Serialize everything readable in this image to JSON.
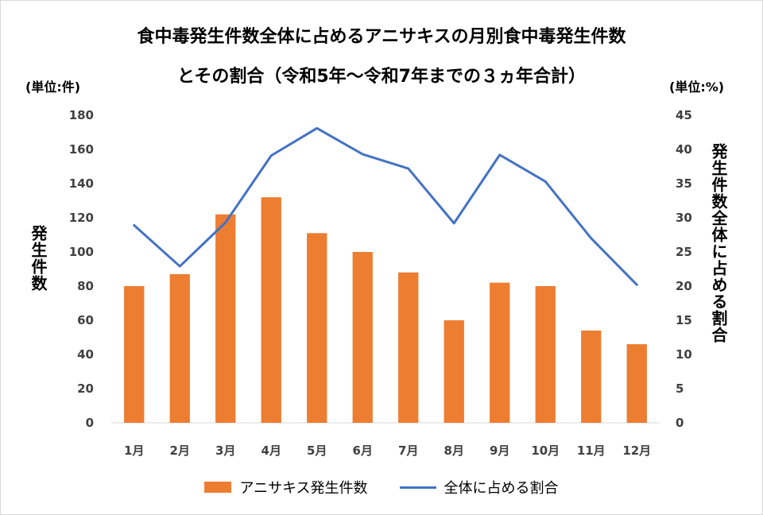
{
  "chart_data": {
    "type": "bar+line",
    "title_line1": "食中毒発生件数全体に占めるアニサキスの月別食中毒発生件数",
    "title_line2": "とその割合（令和5年～令和7年までの３ヵ年合計）",
    "left_unit": "(単位:件)",
    "right_unit": "(単位:%)",
    "ylabel_left": "発生件数",
    "ylabel_right": "発生件数全体に占める割合",
    "categories": [
      "1月",
      "2月",
      "3月",
      "4月",
      "5月",
      "6月",
      "7月",
      "8月",
      "9月",
      "10月",
      "11月",
      "12月"
    ],
    "series": [
      {
        "name": "アニサキス発生件数",
        "type": "bar",
        "axis": "left",
        "color": "#ED7D31",
        "values": [
          80,
          87,
          122,
          132,
          111,
          100,
          88,
          60,
          82,
          80,
          54,
          46
        ]
      },
      {
        "name": "全体に占める割合",
        "type": "line",
        "axis": "right",
        "color": "#4472C4",
        "values": [
          28.9,
          22.9,
          29.3,
          39.1,
          43.1,
          39.3,
          37.2,
          29.2,
          39.2,
          35.3,
          27.0,
          20.2
        ]
      }
    ],
    "ylim_left": [
      0,
      180
    ],
    "yticks_left": [
      0,
      20,
      40,
      60,
      80,
      100,
      120,
      140,
      160,
      180
    ],
    "ylim_right": [
      0,
      45
    ],
    "yticks_right": [
      0,
      5,
      10,
      15,
      20,
      25,
      30,
      35,
      40,
      45
    ],
    "grid": false,
    "legend_position": "bottom"
  }
}
